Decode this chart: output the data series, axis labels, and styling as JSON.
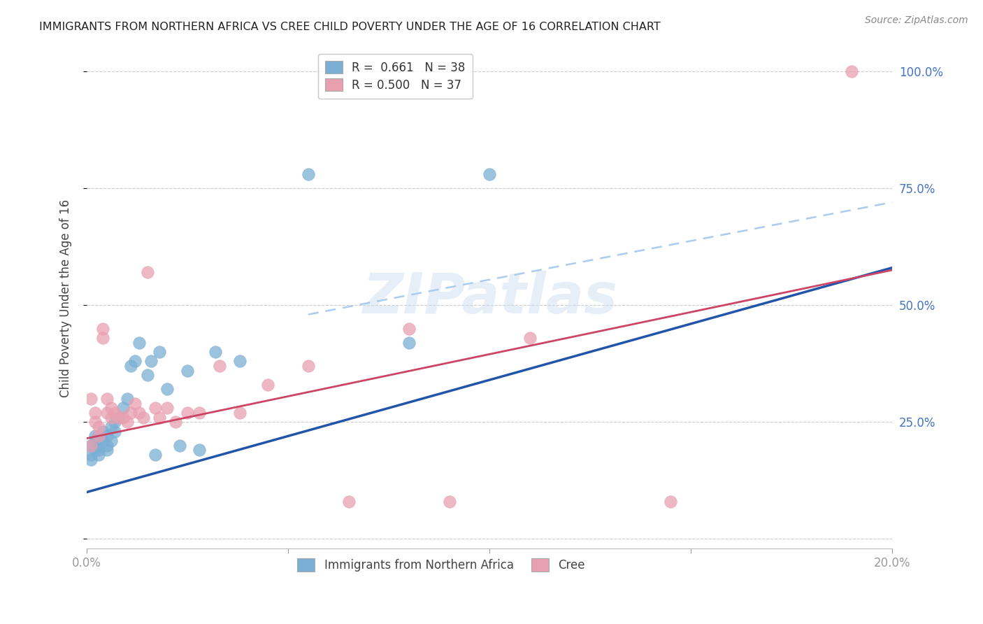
{
  "title": "IMMIGRANTS FROM NORTHERN AFRICA VS CREE CHILD POVERTY UNDER THE AGE OF 16 CORRELATION CHART",
  "source": "Source: ZipAtlas.com",
  "ylabel": "Child Poverty Under the Age of 16",
  "xlim": [
    0.0,
    0.2
  ],
  "ylim": [
    -0.02,
    1.05
  ],
  "yticks": [
    0.0,
    0.25,
    0.5,
    0.75,
    1.0
  ],
  "ytick_labels": [
    "",
    "25.0%",
    "50.0%",
    "75.0%",
    "100.0%"
  ],
  "xticks": [
    0.0,
    0.05,
    0.1,
    0.15,
    0.2
  ],
  "xtick_labels": [
    "0.0%",
    "",
    "",
    "",
    "20.0%"
  ],
  "blue_color": "#7bafd4",
  "pink_color": "#e8a0b0",
  "blue_line_color": "#2255aa",
  "pink_line_color": "#cc4466",
  "dashed_line_color": "#aaccee",
  "axis_color": "#4472c4",
  "title_color": "#222222",
  "background_color": "#ffffff",
  "legend_R_blue": "0.661",
  "legend_N_blue": "38",
  "legend_R_pink": "0.500",
  "legend_N_pink": "37",
  "legend_label_blue": "Immigrants from Northern Africa",
  "legend_label_pink": "Cree",
  "blue_x": [
    0.001,
    0.001,
    0.001,
    0.002,
    0.002,
    0.002,
    0.003,
    0.003,
    0.003,
    0.003,
    0.004,
    0.004,
    0.005,
    0.005,
    0.005,
    0.006,
    0.006,
    0.007,
    0.007,
    0.008,
    0.009,
    0.01,
    0.011,
    0.012,
    0.013,
    0.015,
    0.016,
    0.017,
    0.018,
    0.02,
    0.023,
    0.025,
    0.028,
    0.032,
    0.038,
    0.055,
    0.08,
    0.1
  ],
  "blue_y": [
    0.18,
    0.2,
    0.17,
    0.19,
    0.22,
    0.21,
    0.2,
    0.18,
    0.22,
    0.19,
    0.21,
    0.23,
    0.2,
    0.19,
    0.22,
    0.24,
    0.21,
    0.23,
    0.25,
    0.26,
    0.28,
    0.3,
    0.37,
    0.38,
    0.42,
    0.35,
    0.38,
    0.18,
    0.4,
    0.32,
    0.2,
    0.36,
    0.19,
    0.4,
    0.38,
    0.78,
    0.42,
    0.78
  ],
  "pink_x": [
    0.001,
    0.001,
    0.002,
    0.002,
    0.003,
    0.003,
    0.004,
    0.004,
    0.005,
    0.005,
    0.006,
    0.006,
    0.007,
    0.008,
    0.009,
    0.01,
    0.011,
    0.012,
    0.013,
    0.014,
    0.015,
    0.017,
    0.018,
    0.02,
    0.022,
    0.025,
    0.028,
    0.033,
    0.038,
    0.045,
    0.055,
    0.065,
    0.08,
    0.09,
    0.11,
    0.145,
    0.19
  ],
  "pink_y": [
    0.2,
    0.3,
    0.25,
    0.27,
    0.22,
    0.24,
    0.45,
    0.43,
    0.27,
    0.3,
    0.26,
    0.28,
    0.27,
    0.26,
    0.26,
    0.25,
    0.27,
    0.29,
    0.27,
    0.26,
    0.57,
    0.28,
    0.26,
    0.28,
    0.25,
    0.27,
    0.27,
    0.37,
    0.27,
    0.33,
    0.37,
    0.08,
    0.45,
    0.08,
    0.43,
    0.08,
    1.0
  ],
  "blue_line_x0": 0.0,
  "blue_line_y0": 0.1,
  "blue_line_x1": 0.2,
  "blue_line_y1": 0.58,
  "pink_line_x0": 0.0,
  "pink_line_y0": 0.215,
  "pink_line_x1": 0.2,
  "pink_line_y1": 0.575,
  "dash_line_x0": 0.055,
  "dash_line_y0": 0.48,
  "dash_line_x1": 0.2,
  "dash_line_y1": 0.72
}
